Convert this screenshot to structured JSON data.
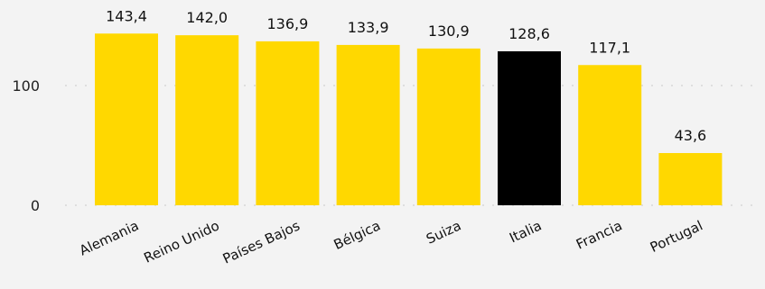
{
  "chart_data": {
    "type": "bar",
    "categories": [
      "Alemania",
      "Reino Unido",
      "Países Bajos",
      "Bélgica",
      "Suiza",
      "Italia",
      "Francia",
      "Portugal"
    ],
    "values": [
      143.4,
      142.0,
      136.9,
      133.9,
      130.9,
      128.6,
      117.1,
      43.6
    ],
    "value_labels": [
      "143,4",
      "142,0",
      "136,9",
      "133,9",
      "130,9",
      "128,6",
      "117,1",
      "43,6"
    ],
    "highlight_index": 5,
    "colors": {
      "bar": "#ffd800",
      "highlight": "#000000",
      "grid": "#c9c9c9"
    },
    "yticks": [
      0,
      100
    ],
    "ytick_labels": [
      "0",
      "100"
    ],
    "ylim": [
      0,
      150
    ],
    "grid": true,
    "title": "",
    "xlabel": "",
    "ylabel": ""
  }
}
